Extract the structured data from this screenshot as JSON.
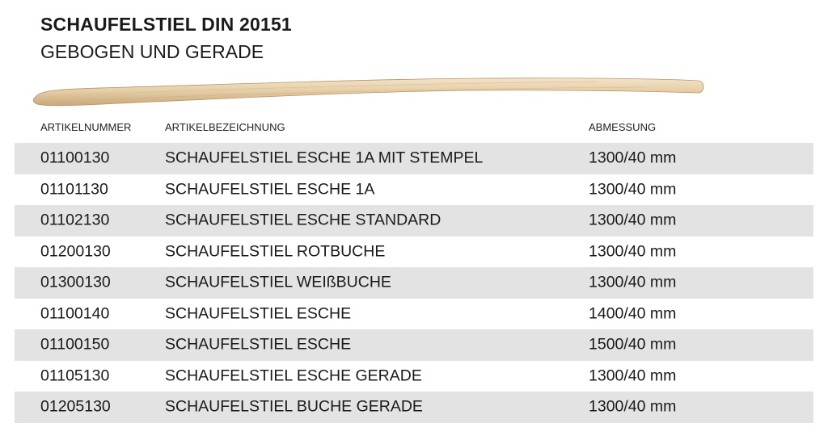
{
  "title": "SCHAUFELSTIEL DIN 20151",
  "subtitle": "GEBOGEN UND GERADE",
  "image": {
    "icon": "wooden-shovel-handle"
  },
  "table": {
    "headers": [
      "ARTIKELNUMMER",
      "ARTIKELBEZEICHNUNG",
      "ABMESSUNG"
    ],
    "rows": [
      [
        "01100130",
        "SCHAUFELSTIEL ESCHE 1A MIT STEMPEL",
        "1300/40 mm"
      ],
      [
        "01101130",
        "SCHAUFELSTIEL ESCHE 1A",
        "1300/40 mm"
      ],
      [
        "01102130",
        "SCHAUFELSTIEL ESCHE STANDARD",
        "1300/40 mm"
      ],
      [
        "01200130",
        "SCHAUFELSTIEL ROTBUCHE",
        "1300/40 mm"
      ],
      [
        "01300130",
        "SCHAUFELSTIEL WEIßBUCHE",
        "1300/40 mm"
      ],
      [
        "01100140",
        "SCHAUFELSTIEL ESCHE",
        "1400/40 mm"
      ],
      [
        "01100150",
        "SCHAUFELSTIEL ESCHE",
        "1500/40 mm"
      ],
      [
        "01105130",
        "SCHAUFELSTIEL ESCHE GERADE",
        "1300/40 mm"
      ],
      [
        "01205130",
        "SCHAUFELSTIEL BUCHE GERADE",
        "1300/40 mm"
      ]
    ]
  }
}
